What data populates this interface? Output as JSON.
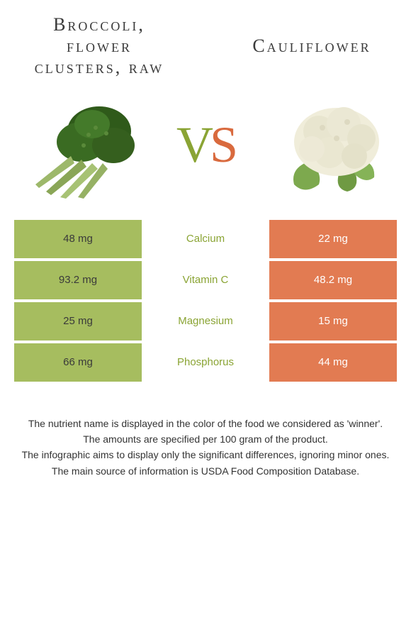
{
  "colors": {
    "left_bg": "#a6bd5f",
    "right_bg": "#e27b52",
    "winner_left": "#8aa434",
    "winner_right": "#d96a3e",
    "text_dark": "#3a3a3a",
    "text_light": "#ffffff"
  },
  "left": {
    "title": "Broccoli, flower clusters, raw"
  },
  "right": {
    "title": "Cauliflower"
  },
  "vs": {
    "v": "V",
    "s": "S"
  },
  "rows": [
    {
      "name": "Calcium",
      "left": "48 mg",
      "right": "22 mg",
      "winner": "left"
    },
    {
      "name": "Vitamin C",
      "left": "93.2 mg",
      "right": "48.2 mg",
      "winner": "left"
    },
    {
      "name": "Magnesium",
      "left": "25 mg",
      "right": "15 mg",
      "winner": "left"
    },
    {
      "name": "Phosphorus",
      "left": "66 mg",
      "right": "44 mg",
      "winner": "left"
    }
  ],
  "footer": [
    "The nutrient name is displayed in the color of the food we considered as 'winner'.",
    "The amounts are specified per 100 gram of the product.",
    "The infographic aims to display only the significant differences, ignoring minor ones.",
    "The main source of information is USDA Food Composition Database."
  ]
}
